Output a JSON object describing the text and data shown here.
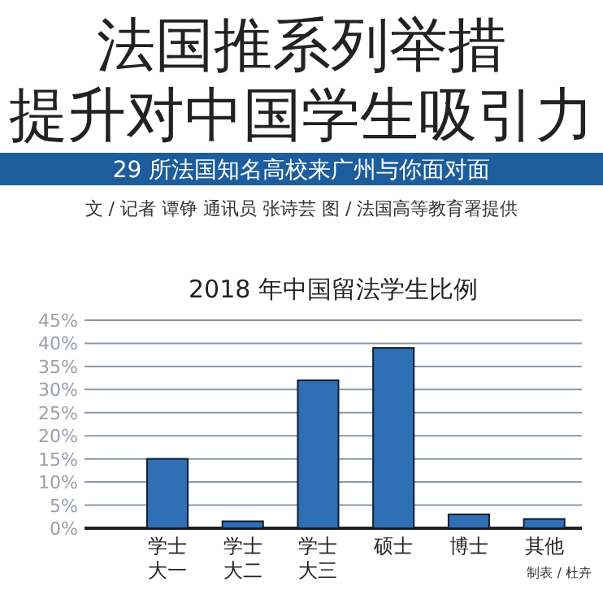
{
  "chart_data": {
    "type": "bar",
    "title": "2018 年中国留法学生比例",
    "annotations": [
      "法国推系列举措",
      "提升对中国学生吸引力",
      "29 所法国知名高校来广州与你面对面",
      "文 / 记者 谭铮 通讯员 张诗芸 图 / 法国高等教育署提供",
      "制表 / 杜卉"
    ],
    "categories": [
      "学士大一",
      "学士大二",
      "学士大三",
      "硕士",
      "博士",
      "其他"
    ],
    "values": [
      15,
      1.5,
      32,
      39,
      3,
      2
    ],
    "color": "#2f6fb5",
    "ylim": [
      0,
      45
    ],
    "yticks": [
      {
        "value": 0,
        "label": "0%"
      },
      {
        "value": 5,
        "label": "5%"
      },
      {
        "value": 10,
        "label": "10%"
      },
      {
        "value": 15,
        "label": "15%"
      },
      {
        "value": 20,
        "label": "20%"
      },
      {
        "value": 25,
        "label": "25%"
      },
      {
        "value": 30,
        "label": "30%"
      },
      {
        "value": 35,
        "label": "35%"
      },
      {
        "value": 40,
        "label": "40%"
      },
      {
        "value": 45,
        "label": "45%"
      }
    ],
    "grid": "y"
  }
}
